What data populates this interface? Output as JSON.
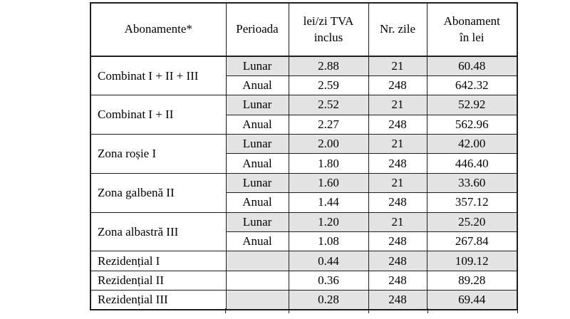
{
  "colors": {
    "row_shading": "#e3e3e3",
    "border": "#1f1f1f",
    "text": "#000000",
    "background": "#ffffff"
  },
  "table": {
    "headers": [
      "Abonamente*",
      "Perioada",
      "lei/zi TVA\ninclus",
      "Nr. zile",
      "Abonament\nîn lei"
    ],
    "groups": [
      {
        "name": "Combinat I + II + III",
        "rows": [
          {
            "perioada": "Lunar",
            "lei_zi": "2.88",
            "nr_zile": "21",
            "abonament": "60.48",
            "shaded": true
          },
          {
            "perioada": "Anual",
            "lei_zi": "2.59",
            "nr_zile": "248",
            "abonament": "642.32",
            "shaded": false
          }
        ]
      },
      {
        "name": "Combinat I + II",
        "rows": [
          {
            "perioada": "Lunar",
            "lei_zi": "2.52",
            "nr_zile": "21",
            "abonament": "52.92",
            "shaded": true
          },
          {
            "perioada": "Anual",
            "lei_zi": "2.27",
            "nr_zile": "248",
            "abonament": "562.96",
            "shaded": false
          }
        ]
      },
      {
        "name": "Zona roșie I",
        "rows": [
          {
            "perioada": "Lunar",
            "lei_zi": "2.00",
            "nr_zile": "21",
            "abonament": "42.00",
            "shaded": true
          },
          {
            "perioada": "Anual",
            "lei_zi": "1.80",
            "nr_zile": "248",
            "abonament": "446.40",
            "shaded": false
          }
        ]
      },
      {
        "name": "Zona galbenă II",
        "rows": [
          {
            "perioada": "Lunar",
            "lei_zi": "1.60",
            "nr_zile": "21",
            "abonament": "33.60",
            "shaded": true
          },
          {
            "perioada": "Anual",
            "lei_zi": "1.44",
            "nr_zile": "248",
            "abonament": "357.12",
            "shaded": false
          }
        ]
      },
      {
        "name": "Zona albastră III",
        "rows": [
          {
            "perioada": "Lunar",
            "lei_zi": "1.20",
            "nr_zile": "21",
            "abonament": "25.20",
            "shaded": true
          },
          {
            "perioada": "Anual",
            "lei_zi": "1.08",
            "nr_zile": "248",
            "abonament": "267.84",
            "shaded": false
          }
        ]
      },
      {
        "name": "Rezidențial I",
        "rows": [
          {
            "perioada": "",
            "lei_zi": "0.44",
            "nr_zile": "248",
            "abonament": "109.12",
            "shaded": true
          }
        ]
      },
      {
        "name": "Rezidențial II",
        "rows": [
          {
            "perioada": "",
            "lei_zi": "0.36",
            "nr_zile": "248",
            "abonament": "89.28",
            "shaded": false
          }
        ]
      },
      {
        "name": "Rezidențial III",
        "rows": [
          {
            "perioada": "",
            "lei_zi": "0.28",
            "nr_zile": "248",
            "abonament": "69.44",
            "shaded": true
          }
        ]
      }
    ]
  }
}
